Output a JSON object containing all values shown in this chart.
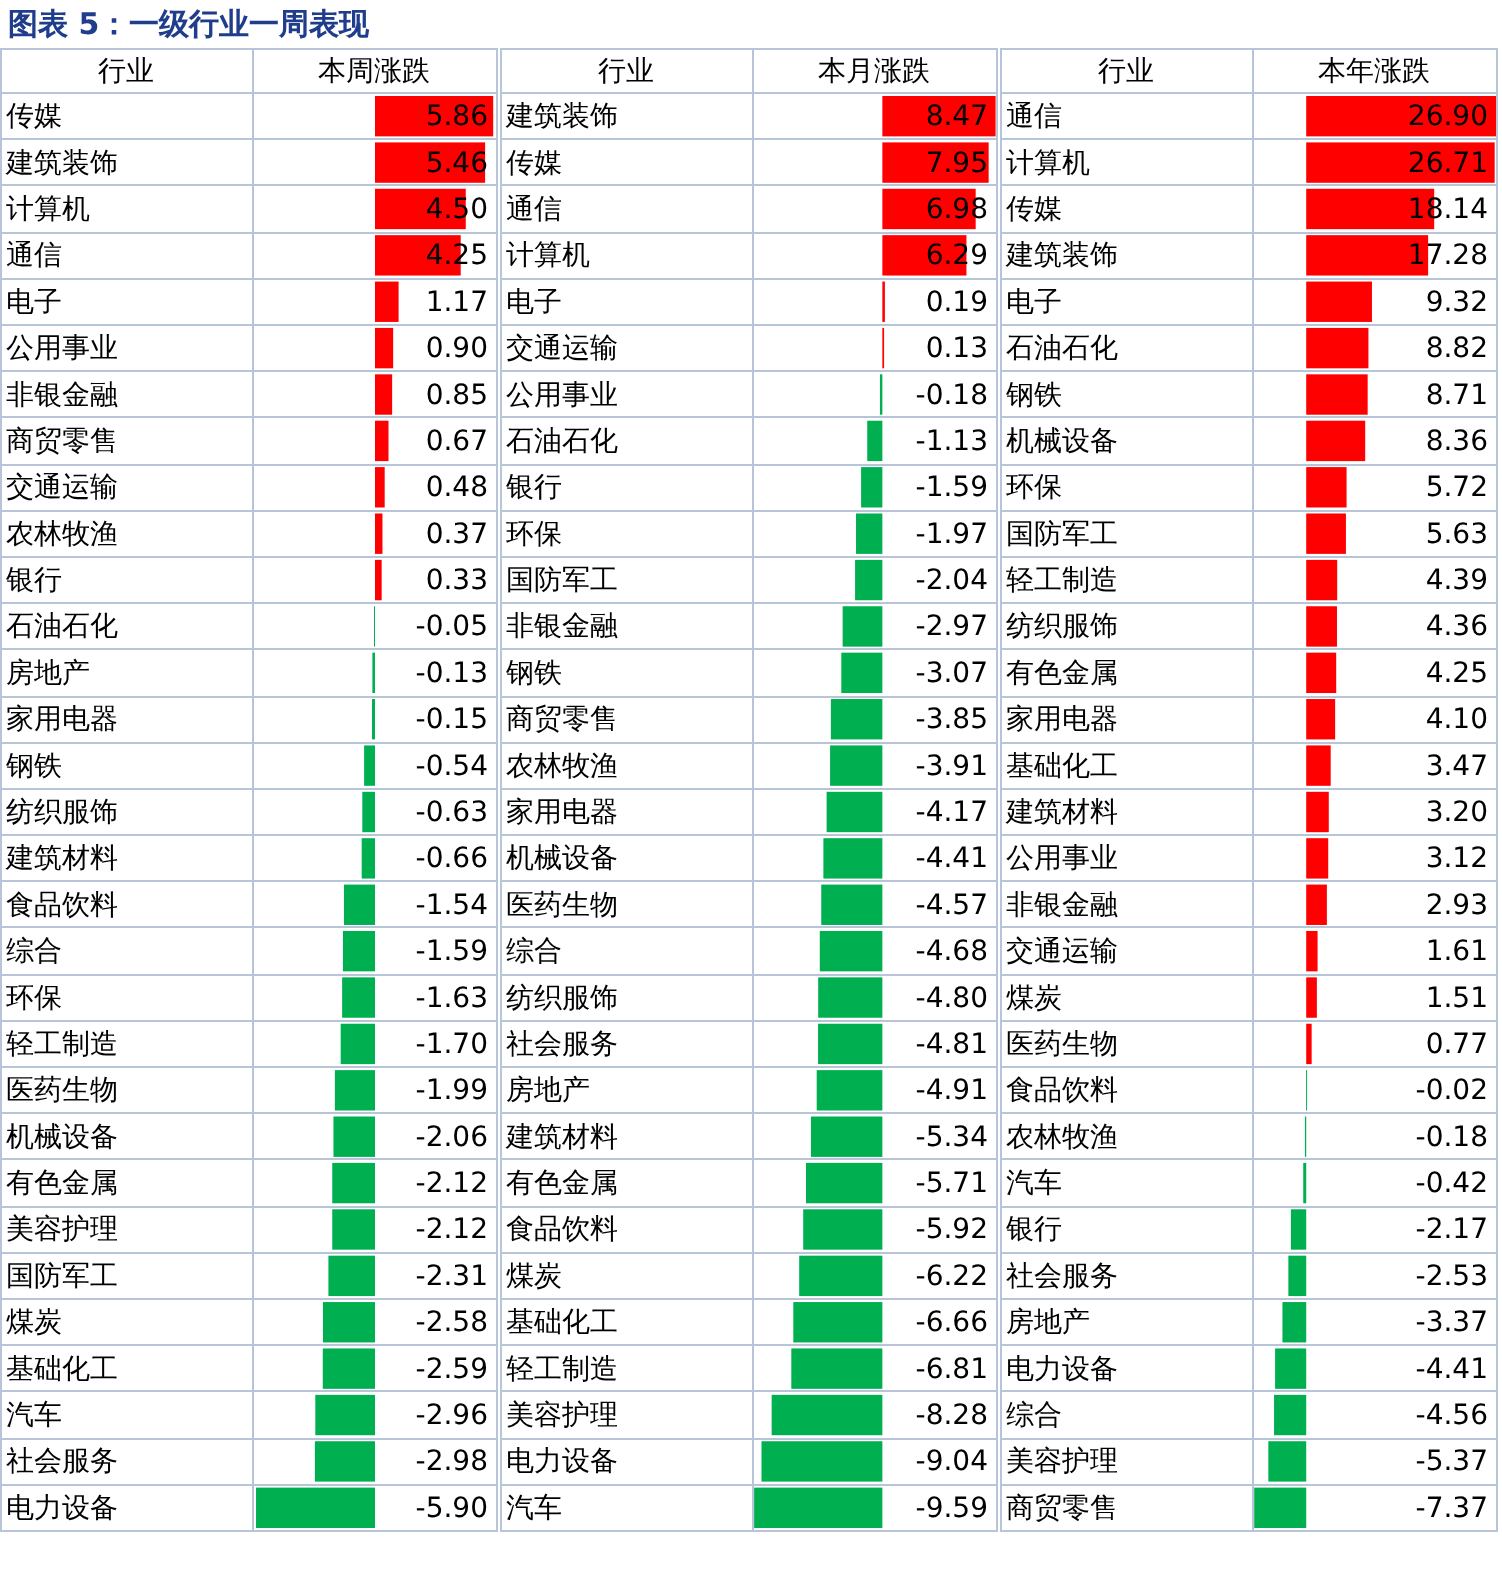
{
  "chart_data": [
    {
      "type": "bar",
      "orientation": "horizontal",
      "title": "图表 5：一级行业一周表现",
      "ylabel": "行业",
      "xlabel": "本周涨跌",
      "xlim": [
        -6,
        6
      ],
      "categories": [
        "传媒",
        "建筑装饰",
        "计算机",
        "通信",
        "电子",
        "公用事业",
        "非银金融",
        "商贸零售",
        "交通运输",
        "农林牧渔",
        "银行",
        "石油石化",
        "房地产",
        "家用电器",
        "钢铁",
        "纺织服饰",
        "建筑材料",
        "食品饮料",
        "综合",
        "环保",
        "轻工制造",
        "医药生物",
        "机械设备",
        "有色金属",
        "美容护理",
        "国防军工",
        "煤炭",
        "基础化工",
        "汽车",
        "社会服务",
        "电力设备"
      ],
      "values": [
        5.86,
        5.46,
        4.5,
        4.25,
        1.17,
        0.9,
        0.85,
        0.67,
        0.48,
        0.37,
        0.33,
        -0.05,
        -0.13,
        -0.15,
        -0.54,
        -0.63,
        -0.66,
        -1.54,
        -1.59,
        -1.63,
        -1.7,
        -1.99,
        -2.06,
        -2.12,
        -2.12,
        -2.31,
        -2.58,
        -2.59,
        -2.96,
        -2.98,
        -5.9
      ],
      "value_labels": [
        "5.86",
        "5.46",
        "4.50",
        "4.25",
        "1.17",
        "0.90",
        "0.85",
        "0.67",
        "0.48",
        "0.37",
        "0.33",
        "-0.05",
        "-0.13",
        "-0.15",
        "-0.54",
        "-0.63",
        "-0.66",
        "-1.54",
        "-1.59",
        "-1.63",
        "-1.70",
        "-1.99",
        "-2.06",
        "-2.12",
        "-2.12",
        "-2.31",
        "-2.58",
        "-2.59",
        "-2.96",
        "-2.98",
        "-5.90"
      ],
      "colors": [
        "#ff0000",
        "#ff0000",
        "#ff0000",
        "#ff0000",
        "#ff0000",
        "#ff0000",
        "#ff0000",
        "#ff0000",
        "#ff0000",
        "#ff0000",
        "#ff0000",
        "#00b050",
        "#00b050",
        "#00b050",
        "#00b050",
        "#00b050",
        "#00b050",
        "#00b050",
        "#00b050",
        "#00b050",
        "#00b050",
        "#00b050",
        "#00b050",
        "#00b050",
        "#00b050",
        "#00b050",
        "#00b050",
        "#00b050",
        "#00b050",
        "#00b050",
        "#00b050"
      ]
    },
    {
      "type": "bar",
      "orientation": "horizontal",
      "ylabel": "行业",
      "xlabel": "本月涨跌",
      "xlim": [
        -9.6,
        8.5
      ],
      "categories": [
        "建筑装饰",
        "传媒",
        "通信",
        "计算机",
        "电子",
        "交通运输",
        "公用事业",
        "石油石化",
        "银行",
        "环保",
        "国防军工",
        "非银金融",
        "钢铁",
        "商贸零售",
        "农林牧渔",
        "家用电器",
        "机械设备",
        "医药生物",
        "综合",
        "纺织服饰",
        "社会服务",
        "房地产",
        "建筑材料",
        "有色金属",
        "食品饮料",
        "煤炭",
        "基础化工",
        "轻工制造",
        "美容护理",
        "电力设备",
        "汽车"
      ],
      "values": [
        8.47,
        7.95,
        6.98,
        6.29,
        0.19,
        0.13,
        -0.18,
        -1.13,
        -1.59,
        -1.97,
        -2.04,
        -2.97,
        -3.07,
        -3.85,
        -3.91,
        -4.17,
        -4.41,
        -4.57,
        -4.68,
        -4.8,
        -4.81,
        -4.91,
        -5.34,
        -5.71,
        -5.92,
        -6.22,
        -6.66,
        -6.81,
        -8.28,
        -9.04,
        -9.59
      ],
      "value_labels": [
        "8.47",
        "7.95",
        "6.98",
        "6.29",
        "0.19",
        "0.13",
        "-0.18",
        "-1.13",
        "-1.59",
        "-1.97",
        "-2.04",
        "-2.97",
        "-3.07",
        "-3.85",
        "-3.91",
        "-4.17",
        "-4.41",
        "-4.57",
        "-4.68",
        "-4.80",
        "-4.81",
        "-4.91",
        "-5.34",
        "-5.71",
        "-5.92",
        "-6.22",
        "-6.66",
        "-6.81",
        "-8.28",
        "-9.04",
        "-9.59"
      ],
      "colors": [
        "#ff0000",
        "#ff0000",
        "#ff0000",
        "#ff0000",
        "#ff0000",
        "#ff0000",
        "#00b050",
        "#00b050",
        "#00b050",
        "#00b050",
        "#00b050",
        "#00b050",
        "#00b050",
        "#00b050",
        "#00b050",
        "#00b050",
        "#00b050",
        "#00b050",
        "#00b050",
        "#00b050",
        "#00b050",
        "#00b050",
        "#00b050",
        "#00b050",
        "#00b050",
        "#00b050",
        "#00b050",
        "#00b050",
        "#00b050",
        "#00b050",
        "#00b050"
      ]
    },
    {
      "type": "bar",
      "orientation": "horizontal",
      "ylabel": "行业",
      "xlabel": "本年涨跌",
      "xlim": [
        -7.4,
        26.9
      ],
      "categories": [
        "通信",
        "计算机",
        "传媒",
        "建筑装饰",
        "电子",
        "石油石化",
        "钢铁",
        "机械设备",
        "环保",
        "国防军工",
        "轻工制造",
        "纺织服饰",
        "有色金属",
        "家用电器",
        "基础化工",
        "建筑材料",
        "公用事业",
        "非银金融",
        "交通运输",
        "煤炭",
        "医药生物",
        "食品饮料",
        "农林牧渔",
        "汽车",
        "银行",
        "社会服务",
        "房地产",
        "电力设备",
        "综合",
        "美容护理",
        "商贸零售"
      ],
      "values": [
        26.9,
        26.71,
        18.14,
        17.28,
        9.32,
        8.82,
        8.71,
        8.36,
        5.72,
        5.63,
        4.39,
        4.36,
        4.25,
        4.1,
        3.47,
        3.2,
        3.12,
        2.93,
        1.61,
        1.51,
        0.77,
        -0.02,
        -0.18,
        -0.42,
        -2.17,
        -2.53,
        -3.37,
        -4.41,
        -4.56,
        -5.37,
        -7.37
      ],
      "value_labels": [
        "26.90",
        "26.71",
        "18.14",
        "17.28",
        "9.32",
        "8.82",
        "8.71",
        "8.36",
        "5.72",
        "5.63",
        "4.39",
        "4.36",
        "4.25",
        "4.10",
        "3.47",
        "3.20",
        "3.12",
        "2.93",
        "1.61",
        "1.51",
        "0.77",
        "-0.02",
        "-0.18",
        "-0.42",
        "-2.17",
        "-2.53",
        "-3.37",
        "-4.41",
        "-4.56",
        "-5.37",
        "-7.37"
      ],
      "colors": [
        "#ff0000",
        "#ff0000",
        "#ff0000",
        "#ff0000",
        "#ff0000",
        "#ff0000",
        "#ff0000",
        "#ff0000",
        "#ff0000",
        "#ff0000",
        "#ff0000",
        "#ff0000",
        "#ff0000",
        "#ff0000",
        "#ff0000",
        "#ff0000",
        "#ff0000",
        "#ff0000",
        "#ff0000",
        "#ff0000",
        "#ff0000",
        "#00b050",
        "#00b050",
        "#00b050",
        "#00b050",
        "#00b050",
        "#00b050",
        "#00b050",
        "#00b050",
        "#00b050",
        "#00b050"
      ]
    }
  ]
}
